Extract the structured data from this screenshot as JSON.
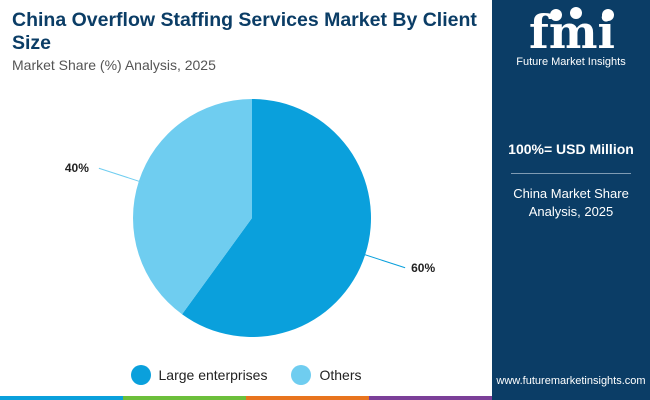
{
  "header": {
    "title": "China Overflow Staffing Services Market By Client Size",
    "subtitle": "Market Share (%) Analysis, 2025"
  },
  "chart_data": {
    "type": "pie",
    "categories": [
      "Large enterprises",
      "Others"
    ],
    "values": [
      60,
      40
    ],
    "data_labels": [
      "60%",
      "40%"
    ],
    "colors": [
      "#0aa0dc",
      "#6fcdf0"
    ],
    "legend_position": "bottom"
  },
  "legend": {
    "items": [
      {
        "label": "Large enterprises",
        "color": "#0aa0dc"
      },
      {
        "label": "Others",
        "color": "#6fcdf0"
      }
    ]
  },
  "sidebar": {
    "brand_logo_text": "fmi",
    "brand": "Future Market Insights",
    "heading": "100%= USD Million",
    "description": "China Market Share Analysis, 2025",
    "website": "www.futuremarketinsights.com"
  },
  "colors": {
    "navy": "#0b3d66",
    "bottom_bar": [
      "#0aa0dc",
      "#6cbf3b",
      "#e8741e",
      "#7b3f98"
    ]
  }
}
